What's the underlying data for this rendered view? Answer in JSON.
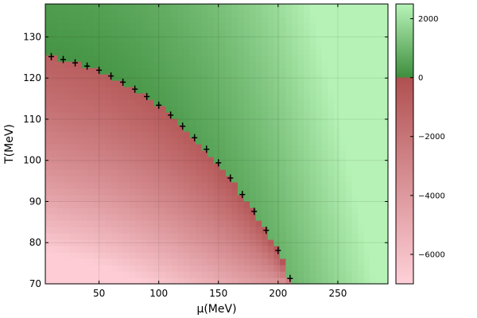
{
  "chart_data": {
    "type": "heatmap",
    "title": "",
    "xlabel": "μ(MeV)",
    "ylabel": "T(MeV)",
    "xlim": [
      5,
      292
    ],
    "ylim": [
      70,
      138
    ],
    "xticks": [
      50,
      100,
      150,
      200,
      250
    ],
    "yticks": [
      70,
      80,
      90,
      100,
      110,
      120,
      130
    ],
    "grid": true,
    "colorbar": {
      "range": [
        -7000,
        2500
      ],
      "ticks": [
        2000,
        0,
        -2000,
        -4000,
        -6000
      ],
      "tick_labels": [
        "2000",
        "0",
        "−2000",
        "−4000",
        "−6000"
      ],
      "negative_colors": [
        "#b05050",
        "#ffd0d8"
      ],
      "positive_colors": [
        "#3e8e3e",
        "#b8f4b8"
      ]
    },
    "phase_boundary_points": [
      {
        "x": 10,
        "y": 125.2
      },
      {
        "x": 20,
        "y": 124.5
      },
      {
        "x": 30,
        "y": 123.7
      },
      {
        "x": 40,
        "y": 122.9
      },
      {
        "x": 50,
        "y": 121.9
      },
      {
        "x": 60,
        "y": 120.5
      },
      {
        "x": 70,
        "y": 119.0
      },
      {
        "x": 80,
        "y": 117.3
      },
      {
        "x": 90,
        "y": 115.5
      },
      {
        "x": 100,
        "y": 113.4
      },
      {
        "x": 110,
        "y": 111.0
      },
      {
        "x": 120,
        "y": 108.3
      },
      {
        "x": 130,
        "y": 105.5
      },
      {
        "x": 140,
        "y": 102.7
      },
      {
        "x": 150,
        "y": 99.4
      },
      {
        "x": 160,
        "y": 95.7
      },
      {
        "x": 170,
        "y": 91.7
      },
      {
        "x": 180,
        "y": 87.6
      },
      {
        "x": 190,
        "y": 83.0
      },
      {
        "x": 200,
        "y": 78.1
      },
      {
        "x": 210,
        "y": 71.3
      }
    ]
  }
}
